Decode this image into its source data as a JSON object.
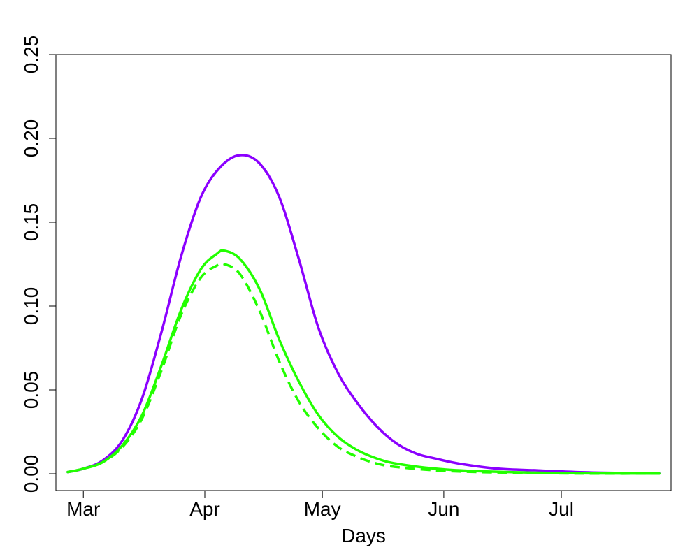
{
  "chart_data": {
    "type": "line",
    "title": "",
    "xlabel": "Days",
    "ylabel": "",
    "x_axis": {
      "type": "date",
      "range": [
        "2020-02-23",
        "2020-07-29"
      ],
      "ticks": [
        {
          "date": "2020-03-01",
          "label": "Mar"
        },
        {
          "date": "2020-04-01",
          "label": "Apr"
        },
        {
          "date": "2020-05-01",
          "label": "May"
        },
        {
          "date": "2020-06-01",
          "label": "Jun"
        },
        {
          "date": "2020-07-01",
          "label": "Jul"
        }
      ]
    },
    "y_axis": {
      "range": [
        -0.01,
        0.25
      ],
      "ticks": [
        {
          "value": 0.0,
          "label": "0.00"
        },
        {
          "value": 0.05,
          "label": "0.05"
        },
        {
          "value": 0.1,
          "label": "0.10"
        },
        {
          "value": 0.15,
          "label": "0.15"
        },
        {
          "value": 0.2,
          "label": "0.20"
        },
        {
          "value": 0.25,
          "label": "0.25"
        }
      ]
    },
    "grid": false,
    "legend": "none",
    "series": [
      {
        "color": "#8B00FF",
        "style": "solid",
        "points": [
          [
            "2020-02-26",
            0.001
          ],
          [
            "2020-03-01",
            0.003
          ],
          [
            "2020-03-06",
            0.008
          ],
          [
            "2020-03-11",
            0.02
          ],
          [
            "2020-03-16",
            0.045
          ],
          [
            "2020-03-21",
            0.085
          ],
          [
            "2020-03-26",
            0.13
          ],
          [
            "2020-03-31",
            0.165
          ],
          [
            "2020-04-05",
            0.183
          ],
          [
            "2020-04-10",
            0.19
          ],
          [
            "2020-04-15",
            0.185
          ],
          [
            "2020-04-20",
            0.165
          ],
          [
            "2020-04-25",
            0.128
          ],
          [
            "2020-04-30",
            0.087
          ],
          [
            "2020-05-05",
            0.06
          ],
          [
            "2020-05-10",
            0.042
          ],
          [
            "2020-05-15",
            0.028
          ],
          [
            "2020-05-20",
            0.018
          ],
          [
            "2020-05-25",
            0.012
          ],
          [
            "2020-05-30",
            0.009
          ],
          [
            "2020-06-05",
            0.006
          ],
          [
            "2020-06-15",
            0.003
          ],
          [
            "2020-06-25",
            0.002
          ],
          [
            "2020-07-05",
            0.001
          ],
          [
            "2020-07-15",
            0.0005
          ],
          [
            "2020-07-26",
            0.0002
          ]
        ]
      },
      {
        "color": "#22FF00",
        "style": "solid",
        "points": [
          [
            "2020-02-26",
            0.001
          ],
          [
            "2020-03-01",
            0.003
          ],
          [
            "2020-03-06",
            0.007
          ],
          [
            "2020-03-11",
            0.017
          ],
          [
            "2020-03-16",
            0.035
          ],
          [
            "2020-03-21",
            0.065
          ],
          [
            "2020-03-26",
            0.098
          ],
          [
            "2020-03-31",
            0.122
          ],
          [
            "2020-04-04",
            0.131
          ],
          [
            "2020-04-06",
            0.133
          ],
          [
            "2020-04-10",
            0.128
          ],
          [
            "2020-04-15",
            0.11
          ],
          [
            "2020-04-20",
            0.08
          ],
          [
            "2020-04-25",
            0.055
          ],
          [
            "2020-04-30",
            0.035
          ],
          [
            "2020-05-05",
            0.022
          ],
          [
            "2020-05-10",
            0.014
          ],
          [
            "2020-05-15",
            0.009
          ],
          [
            "2020-05-20",
            0.006
          ],
          [
            "2020-05-30",
            0.003
          ],
          [
            "2020-06-10",
            0.0015
          ],
          [
            "2020-06-25",
            0.0006
          ],
          [
            "2020-07-10",
            0.0002
          ],
          [
            "2020-07-26",
            0.0001
          ]
        ]
      },
      {
        "color": "#22FF00",
        "style": "dashed",
        "points": [
          [
            "2020-02-26",
            0.001
          ],
          [
            "2020-03-01",
            0.003
          ],
          [
            "2020-03-06",
            0.007
          ],
          [
            "2020-03-11",
            0.016
          ],
          [
            "2020-03-16",
            0.033
          ],
          [
            "2020-03-21",
            0.062
          ],
          [
            "2020-03-26",
            0.095
          ],
          [
            "2020-03-31",
            0.117
          ],
          [
            "2020-04-04",
            0.124
          ],
          [
            "2020-04-06",
            0.125
          ],
          [
            "2020-04-10",
            0.119
          ],
          [
            "2020-04-15",
            0.097
          ],
          [
            "2020-04-20",
            0.067
          ],
          [
            "2020-04-25",
            0.043
          ],
          [
            "2020-04-30",
            0.027
          ],
          [
            "2020-05-05",
            0.016
          ],
          [
            "2020-05-10",
            0.01
          ],
          [
            "2020-05-15",
            0.006
          ],
          [
            "2020-05-20",
            0.004
          ],
          [
            "2020-05-30",
            0.002
          ],
          [
            "2020-06-10",
            0.001
          ],
          [
            "2020-06-25",
            0.0004
          ],
          [
            "2020-07-10",
            0.0001
          ],
          [
            "2020-07-26",
            0.0001
          ]
        ]
      }
    ]
  }
}
